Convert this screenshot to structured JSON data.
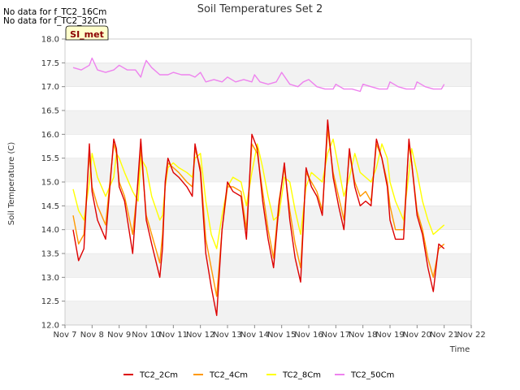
{
  "notes": [
    "No data for f_TC2_16Cm",
    "No data for f_TC2_32Cm"
  ],
  "site_badge": "SI_met",
  "chart_data": {
    "type": "line",
    "title": "Soil Temperatures Set 2",
    "xlabel": "Time",
    "ylabel": "Soil Temperature (C)",
    "ylim": [
      12.0,
      18.0
    ],
    "xlim": [
      7.0,
      22.0
    ],
    "x_ticks": [
      {
        "value": 7,
        "label": "Nov 7"
      },
      {
        "value": 8,
        "label": "Nov 8"
      },
      {
        "value": 9,
        "label": "Nov 9"
      },
      {
        "value": 10,
        "label": "Nov 10"
      },
      {
        "value": 11,
        "label": "Nov 11"
      },
      {
        "value": 12,
        "label": "Nov 12"
      },
      {
        "value": 13,
        "label": "Nov 13"
      },
      {
        "value": 14,
        "label": "Nov 14"
      },
      {
        "value": 15,
        "label": "Nov 15"
      },
      {
        "value": 16,
        "label": "Nov 16"
      },
      {
        "value": 17,
        "label": "Nov 17"
      },
      {
        "value": 18,
        "label": "Nov 18"
      },
      {
        "value": 19,
        "label": "Nov 19"
      },
      {
        "value": 20,
        "label": "Nov 20"
      },
      {
        "value": 21,
        "label": "Nov 21"
      },
      {
        "value": 22,
        "label": "Nov 22"
      }
    ],
    "y_ticks": [
      "12.0",
      "12.5",
      "13.0",
      "13.5",
      "14.0",
      "14.5",
      "15.0",
      "15.5",
      "16.0",
      "16.5",
      "17.0",
      "17.5",
      "18.0"
    ],
    "grid": "horizontal bands",
    "legend_position": "bottom",
    "series": [
      {
        "name": "TC2_2Cm",
        "color": "#dd0000",
        "x": [
          7.3,
          7.5,
          7.7,
          7.9,
          8.0,
          8.2,
          8.5,
          8.8,
          8.9,
          9.0,
          9.2,
          9.5,
          9.7,
          9.8,
          10.0,
          10.2,
          10.5,
          10.6,
          10.7,
          10.8,
          11.0,
          11.2,
          11.5,
          11.7,
          11.8,
          12.0,
          12.2,
          12.4,
          12.6,
          12.8,
          13.0,
          13.2,
          13.5,
          13.7,
          13.9,
          14.1,
          14.3,
          14.5,
          14.7,
          14.9,
          15.1,
          15.3,
          15.5,
          15.7,
          15.9,
          16.1,
          16.3,
          16.5,
          16.7,
          16.9,
          17.1,
          17.3,
          17.5,
          17.7,
          17.9,
          18.1,
          18.3,
          18.5,
          18.7,
          18.9,
          19.0,
          19.2,
          19.5,
          19.7,
          19.8,
          20.0,
          20.2,
          20.4,
          20.6,
          20.8,
          21.0
        ],
        "values": [
          14.0,
          13.35,
          13.6,
          15.8,
          14.8,
          14.2,
          13.8,
          15.9,
          15.7,
          14.9,
          14.6,
          13.5,
          15.1,
          15.9,
          14.2,
          13.7,
          13.0,
          13.6,
          15.0,
          15.5,
          15.2,
          15.1,
          14.9,
          14.7,
          15.8,
          15.2,
          13.5,
          12.8,
          12.2,
          14.0,
          15.0,
          14.8,
          14.7,
          13.8,
          16.0,
          15.7,
          14.6,
          13.8,
          13.2,
          14.5,
          15.4,
          14.2,
          13.4,
          12.9,
          15.3,
          14.9,
          14.7,
          14.3,
          16.3,
          15.1,
          14.5,
          14.0,
          15.7,
          14.9,
          14.5,
          14.6,
          14.5,
          15.9,
          15.5,
          14.9,
          14.2,
          13.8,
          13.8,
          15.9,
          15.4,
          14.3,
          13.9,
          13.2,
          12.7,
          13.7,
          13.6
        ]
      },
      {
        "name": "TC2_4Cm",
        "color": "#ff9900",
        "x": [
          7.3,
          7.5,
          7.7,
          7.9,
          8.0,
          8.2,
          8.5,
          8.8,
          8.9,
          9.0,
          9.2,
          9.5,
          9.7,
          9.8,
          10.0,
          10.2,
          10.5,
          10.6,
          10.7,
          10.8,
          11.0,
          11.2,
          11.5,
          11.7,
          11.8,
          12.0,
          12.2,
          12.4,
          12.6,
          12.8,
          13.0,
          13.2,
          13.5,
          13.7,
          13.9,
          14.1,
          14.3,
          14.5,
          14.7,
          14.9,
          15.1,
          15.3,
          15.5,
          15.7,
          15.9,
          16.1,
          16.3,
          16.5,
          16.7,
          16.9,
          17.1,
          17.3,
          17.5,
          17.7,
          17.9,
          18.1,
          18.3,
          18.5,
          18.7,
          18.9,
          19.0,
          19.2,
          19.5,
          19.7,
          19.8,
          20.0,
          20.2,
          20.4,
          20.6,
          20.8,
          21.0
        ],
        "values": [
          14.3,
          13.7,
          13.9,
          15.6,
          14.9,
          14.5,
          14.1,
          15.8,
          15.6,
          15.0,
          14.7,
          13.9,
          15.0,
          15.7,
          14.3,
          13.9,
          13.3,
          13.9,
          14.9,
          15.4,
          15.3,
          15.2,
          15.0,
          14.9,
          15.7,
          15.3,
          13.8,
          13.2,
          12.6,
          14.0,
          14.9,
          14.9,
          14.8,
          14.0,
          15.8,
          15.6,
          14.8,
          14.0,
          13.4,
          14.6,
          15.3,
          14.4,
          13.7,
          13.2,
          15.2,
          15.0,
          14.8,
          14.4,
          16.1,
          15.2,
          14.7,
          14.2,
          15.6,
          15.0,
          14.7,
          14.8,
          14.6,
          15.8,
          15.5,
          15.0,
          14.5,
          14.0,
          14.0,
          15.8,
          15.4,
          14.4,
          14.0,
          13.4,
          13.0,
          13.6,
          13.7
        ]
      },
      {
        "name": "TC2_8Cm",
        "color": "#ffff00",
        "x": [
          7.3,
          7.5,
          7.7,
          7.9,
          8.0,
          8.2,
          8.5,
          8.8,
          8.9,
          9.0,
          9.2,
          9.5,
          9.7,
          9.8,
          10.0,
          10.2,
          10.5,
          10.6,
          10.7,
          10.8,
          11.0,
          11.2,
          11.5,
          11.7,
          11.8,
          12.0,
          12.2,
          12.4,
          12.6,
          12.8,
          13.0,
          13.2,
          13.5,
          13.7,
          13.9,
          14.1,
          14.3,
          14.5,
          14.7,
          14.9,
          15.1,
          15.3,
          15.5,
          15.7,
          15.9,
          16.1,
          16.3,
          16.5,
          16.7,
          16.9,
          17.1,
          17.3,
          17.5,
          17.7,
          17.9,
          18.1,
          18.3,
          18.5,
          18.7,
          18.9,
          19.0,
          19.2,
          19.5,
          19.7,
          19.8,
          20.0,
          20.2,
          20.4,
          20.6,
          20.8,
          21.0
        ],
        "values": [
          14.85,
          14.4,
          14.2,
          15.0,
          15.6,
          15.1,
          14.7,
          15.1,
          15.6,
          15.5,
          15.2,
          14.8,
          14.6,
          15.5,
          15.3,
          14.7,
          14.2,
          14.3,
          14.9,
          15.3,
          15.4,
          15.3,
          15.2,
          15.1,
          15.5,
          15.6,
          14.6,
          13.9,
          13.6,
          14.3,
          14.9,
          15.1,
          15.0,
          14.5,
          15.2,
          15.8,
          15.3,
          14.7,
          14.2,
          14.3,
          15.1,
          15.0,
          14.4,
          13.9,
          14.9,
          15.2,
          15.1,
          15.0,
          15.6,
          15.9,
          15.3,
          14.7,
          15.1,
          15.6,
          15.2,
          15.1,
          15.0,
          15.3,
          15.8,
          15.5,
          15.0,
          14.6,
          14.2,
          15.2,
          15.7,
          15.2,
          14.6,
          14.2,
          13.9,
          14.0,
          14.1
        ]
      },
      {
        "name": "TC2_50Cm",
        "color": "#ee82ee",
        "x": [
          7.3,
          7.6,
          7.9,
          8.0,
          8.2,
          8.5,
          8.8,
          9.0,
          9.3,
          9.6,
          9.8,
          9.9,
          10.0,
          10.2,
          10.5,
          10.8,
          11.0,
          11.3,
          11.6,
          11.8,
          12.0,
          12.2,
          12.5,
          12.8,
          13.0,
          13.3,
          13.6,
          13.9,
          14.0,
          14.2,
          14.5,
          14.8,
          15.0,
          15.3,
          15.6,
          15.8,
          16.0,
          16.3,
          16.6,
          16.9,
          17.0,
          17.3,
          17.6,
          17.9,
          18.0,
          18.3,
          18.6,
          18.9,
          19.0,
          19.3,
          19.6,
          19.9,
          20.0,
          20.3,
          20.6,
          20.9,
          21.0
        ],
        "values": [
          17.4,
          17.35,
          17.45,
          17.6,
          17.35,
          17.3,
          17.35,
          17.45,
          17.35,
          17.35,
          17.2,
          17.4,
          17.55,
          17.4,
          17.25,
          17.25,
          17.3,
          17.25,
          17.25,
          17.2,
          17.3,
          17.1,
          17.15,
          17.1,
          17.2,
          17.1,
          17.15,
          17.1,
          17.25,
          17.1,
          17.05,
          17.1,
          17.3,
          17.05,
          17.0,
          17.1,
          17.15,
          17.0,
          16.95,
          16.95,
          17.05,
          16.95,
          16.95,
          16.9,
          17.05,
          17.0,
          16.95,
          16.95,
          17.1,
          17.0,
          16.95,
          16.95,
          17.1,
          17.0,
          16.95,
          16.95,
          17.05
        ]
      }
    ]
  }
}
